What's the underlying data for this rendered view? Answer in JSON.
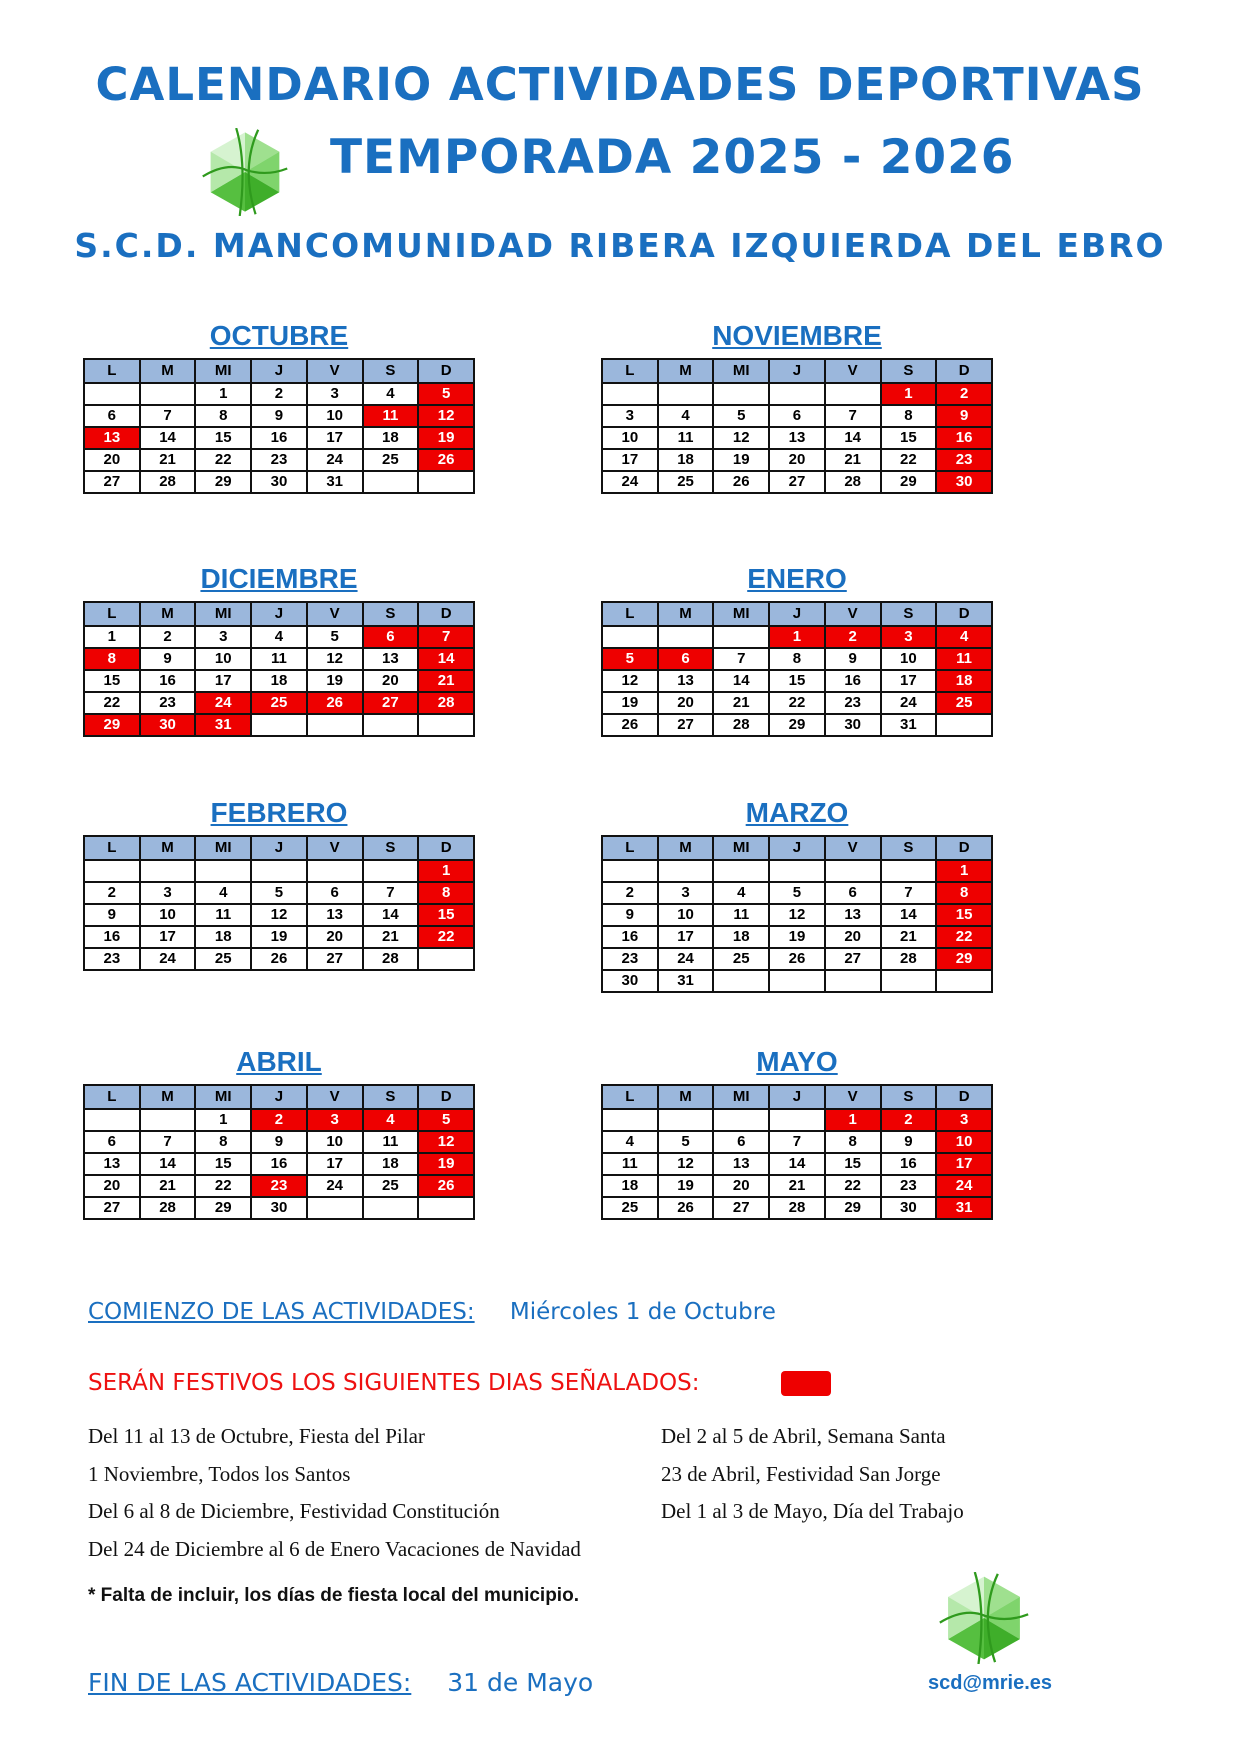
{
  "header": {
    "title": "CALENDARIO  ACTIVIDADES DEPORTIVAS",
    "season": "TEMPORADA 2025 - 2026",
    "club": "S.C.D. MANCOMUNIDAD RIBERA IZQUIERDA DEL EBRO"
  },
  "colors": {
    "accent": "#1a6fc0",
    "holiday": "#ee0000",
    "header_cell": "#9bb7dc",
    "logo": "#3fae2a"
  },
  "weekdays": [
    "L",
    "M",
    "MI",
    "J",
    "V",
    "S",
    "D"
  ],
  "months": [
    {
      "name": "OCTUBRE",
      "weeks": [
        [
          "",
          "",
          "1",
          "2",
          "3",
          "4",
          "5"
        ],
        [
          "6",
          "7",
          "8",
          "9",
          "10",
          "11",
          "12"
        ],
        [
          "13",
          "14",
          "15",
          "16",
          "17",
          "18",
          "19"
        ],
        [
          "20",
          "21",
          "22",
          "23",
          "24",
          "25",
          "26"
        ],
        [
          "27",
          "28",
          "29",
          "30",
          "31",
          "",
          ""
        ]
      ],
      "holidays": [
        "5",
        "11",
        "12",
        "13",
        "19",
        "26"
      ]
    },
    {
      "name": "NOVIEMBRE",
      "weeks": [
        [
          "",
          "",
          "",
          "",
          "",
          "1",
          "2"
        ],
        [
          "3",
          "4",
          "5",
          "6",
          "7",
          "8",
          "9"
        ],
        [
          "10",
          "11",
          "12",
          "13",
          "14",
          "15",
          "16"
        ],
        [
          "17",
          "18",
          "19",
          "20",
          "21",
          "22",
          "23"
        ],
        [
          "24",
          "25",
          "26",
          "27",
          "28",
          "29",
          "30"
        ]
      ],
      "holidays": [
        "1",
        "2",
        "9",
        "16",
        "23",
        "30"
      ]
    },
    {
      "name": "DICIEMBRE",
      "weeks": [
        [
          "1",
          "2",
          "3",
          "4",
          "5",
          "6",
          "7"
        ],
        [
          "8",
          "9",
          "10",
          "11",
          "12",
          "13",
          "14"
        ],
        [
          "15",
          "16",
          "17",
          "18",
          "19",
          "20",
          "21"
        ],
        [
          "22",
          "23",
          "24",
          "25",
          "26",
          "27",
          "28"
        ],
        [
          "29",
          "30",
          "31",
          "",
          "",
          "",
          ""
        ]
      ],
      "holidays": [
        "6",
        "7",
        "8",
        "14",
        "21",
        "24",
        "25",
        "26",
        "27",
        "28",
        "29",
        "30",
        "31"
      ]
    },
    {
      "name": "ENERO",
      "weeks": [
        [
          "",
          "",
          "",
          "1",
          "2",
          "3",
          "4"
        ],
        [
          "5",
          "6",
          "7",
          "8",
          "9",
          "10",
          "11"
        ],
        [
          "12",
          "13",
          "14",
          "15",
          "16",
          "17",
          "18"
        ],
        [
          "19",
          "20",
          "21",
          "22",
          "23",
          "24",
          "25"
        ],
        [
          "26",
          "27",
          "28",
          "29",
          "30",
          "31",
          ""
        ]
      ],
      "holidays": [
        "1",
        "2",
        "3",
        "4",
        "5",
        "6",
        "11",
        "18",
        "25"
      ]
    },
    {
      "name": "FEBRERO",
      "weeks": [
        [
          "",
          "",
          "",
          "",
          "",
          "",
          "1"
        ],
        [
          "2",
          "3",
          "4",
          "5",
          "6",
          "7",
          "8"
        ],
        [
          "9",
          "10",
          "11",
          "12",
          "13",
          "14",
          "15"
        ],
        [
          "16",
          "17",
          "18",
          "19",
          "20",
          "21",
          "22"
        ],
        [
          "23",
          "24",
          "25",
          "26",
          "27",
          "28",
          ""
        ]
      ],
      "holidays": [
        "1",
        "8",
        "15",
        "22"
      ]
    },
    {
      "name": "MARZO",
      "weeks": [
        [
          "",
          "",
          "",
          "",
          "",
          "",
          "1"
        ],
        [
          "2",
          "3",
          "4",
          "5",
          "6",
          "7",
          "8"
        ],
        [
          "9",
          "10",
          "11",
          "12",
          "13",
          "14",
          "15"
        ],
        [
          "16",
          "17",
          "18",
          "19",
          "20",
          "21",
          "22"
        ],
        [
          "23",
          "24",
          "25",
          "26",
          "27",
          "28",
          "29"
        ],
        [
          "30",
          "31",
          "",
          "",
          "",
          "",
          ""
        ]
      ],
      "holidays": [
        "1",
        "8",
        "15",
        "22",
        "29"
      ]
    },
    {
      "name": "ABRIL",
      "weeks": [
        [
          "",
          "",
          "1",
          "2",
          "3",
          "4",
          "5"
        ],
        [
          "6",
          "7",
          "8",
          "9",
          "10",
          "11",
          "12"
        ],
        [
          "13",
          "14",
          "15",
          "16",
          "17",
          "18",
          "19"
        ],
        [
          "20",
          "21",
          "22",
          "23",
          "24",
          "25",
          "26"
        ],
        [
          "27",
          "28",
          "29",
          "30",
          "",
          "",
          ""
        ]
      ],
      "holidays": [
        "2",
        "3",
        "4",
        "5",
        "12",
        "19",
        "23",
        "26"
      ]
    },
    {
      "name": "MAYO",
      "weeks": [
        [
          "",
          "",
          "",
          "",
          "1",
          "2",
          "3"
        ],
        [
          "4",
          "5",
          "6",
          "7",
          "8",
          "9",
          "10"
        ],
        [
          "11",
          "12",
          "13",
          "14",
          "15",
          "16",
          "17"
        ],
        [
          "18",
          "19",
          "20",
          "21",
          "22",
          "23",
          "24"
        ],
        [
          "25",
          "26",
          "27",
          "28",
          "29",
          "30",
          "31"
        ]
      ],
      "holidays": [
        "1",
        "2",
        "3",
        "10",
        "17",
        "24",
        "31"
      ]
    }
  ],
  "start": {
    "label": "COMIENZO DE LAS ACTIVIDADES:",
    "value": "Miércoles 1 de Octubre"
  },
  "holidays_heading": "SERÁN FESTIVOS LOS SIGUIENTES DIAS SEÑALADOS:",
  "holidays_left": [
    "Del 11 al 13 de Octubre, Fiesta del Pilar",
    "1 Noviembre, Todos los Santos",
    "Del 6 al 8 de Diciembre, Festividad Constitución",
    "Del 24 de Diciembre al 6 de Enero Vacaciones de Navidad"
  ],
  "holidays_right": [
    "Del 2 al 5 de Abril,  Semana Santa",
    "23 de Abril,  Festividad San Jorge",
    "Del 1 al 3 de Mayo, Día del Trabajo"
  ],
  "note": "* Falta de incluir, los días de fiesta local del municipio.",
  "end": {
    "label": "FIN DE LAS ACTIVIDADES:",
    "value": "31 de Mayo"
  },
  "email": "scd@mrie.es",
  "logo_icon": "green-hexagon-star-logo"
}
